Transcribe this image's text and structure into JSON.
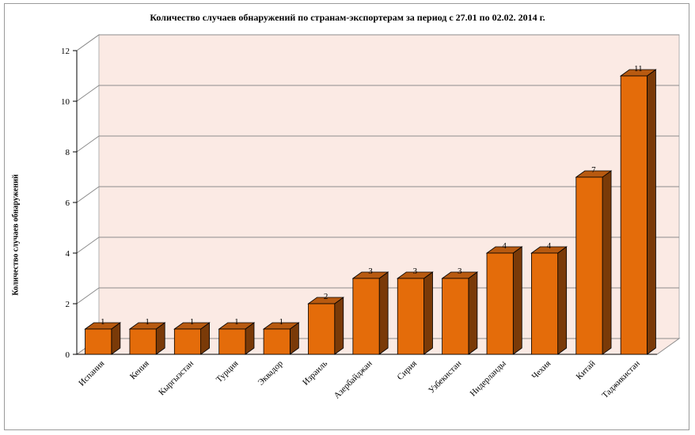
{
  "chart_data": {
    "type": "bar",
    "title": "Количество случаев обнаружений по странам-экспортерам за период с 27.01 по 02.02. 2014 г.",
    "xlabel": "",
    "ylabel": "Количество случаев обнаружений",
    "ylim": [
      0,
      12
    ],
    "yticks": [
      0,
      2,
      4,
      6,
      8,
      10,
      12
    ],
    "grid": true,
    "legend": "none",
    "categories": [
      "Испания",
      "Кения",
      "Кыргызстан",
      "Турция",
      "Эквадор",
      "Израиль",
      "Азербайджан",
      "Сирия",
      "Узбекистан",
      "Нидерланды",
      "Чехия",
      "Китай",
      "Таджикистан"
    ],
    "series": [
      {
        "values": [
          1,
          1,
          1,
          1,
          1,
          2,
          3,
          3,
          3,
          4,
          4,
          7,
          11
        ]
      }
    ],
    "colors": {
      "bar_front": "#e46c0a",
      "bar_top": "#b85a10",
      "bar_side": "#7a3a08",
      "wall": "#fbeae4",
      "floor": "#fbeae4",
      "grid": "#8c8c8c"
    }
  }
}
